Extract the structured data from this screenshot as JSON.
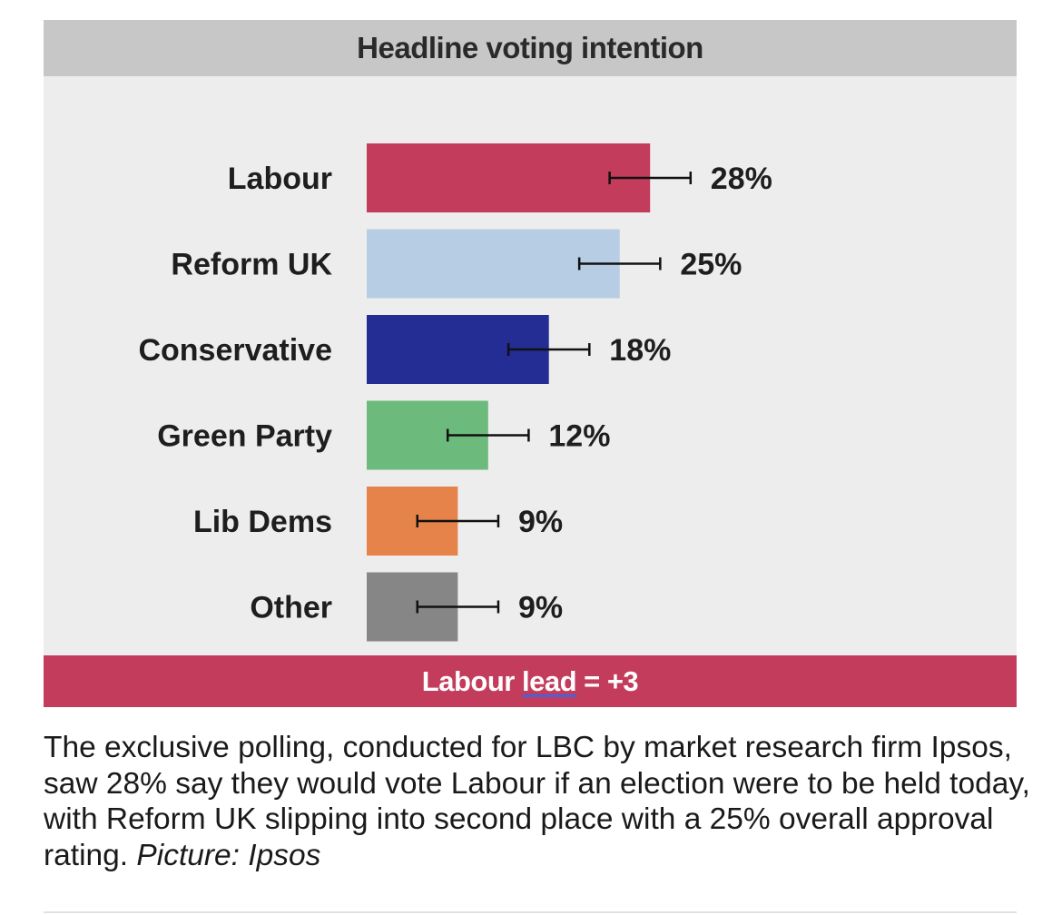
{
  "chart_data": {
    "type": "bar",
    "orientation": "horizontal",
    "title": "Headline voting intention",
    "categories": [
      "Labour",
      "Reform UK",
      "Conservative",
      "Green Party",
      "Lib Dems",
      "Other"
    ],
    "values": [
      28,
      25,
      18,
      12,
      9,
      9
    ],
    "value_labels": [
      "28%",
      "25%",
      "18%",
      "12%",
      "9%",
      "9%"
    ],
    "error_bars": true,
    "error_margin": 4,
    "colors": [
      "#c43c5c",
      "#b6cde3",
      "#232d94",
      "#6dbb7c",
      "#e5834a",
      "#868686"
    ],
    "xlim": [
      0,
      50
    ],
    "grid": false,
    "legend": "none"
  },
  "footer": {
    "prefix": "Labour ",
    "lead_word": "lead",
    "suffix": " = +3",
    "background": "#c43c5c"
  },
  "caption": {
    "text": "The exclusive polling, conducted for LBC by market research firm Ipsos, saw 28% say they would vote Labour if an election were to be held today, with Reform UK slipping into second place with a 25% overall approval rating. ",
    "credit": "Picture: Ipsos"
  }
}
